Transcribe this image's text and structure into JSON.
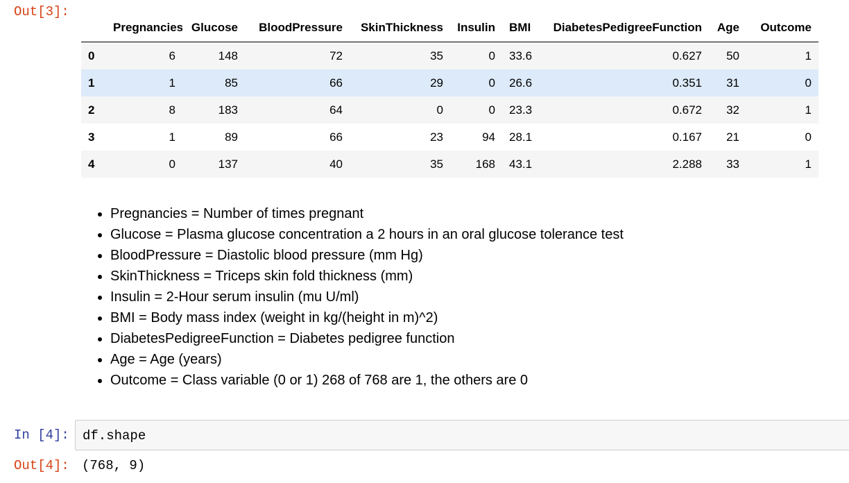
{
  "cells": [
    {
      "out_prompt": "Out[3]:",
      "dataframe": {
        "columns": [
          "Pregnancies",
          "Glucose",
          "BloodPressure",
          "SkinThickness",
          "Insulin",
          "BMI",
          "DiabetesPedigreeFunction",
          "Age",
          "Outcome"
        ],
        "rows": [
          {
            "index": "0",
            "values": [
              "6",
              "148",
              "72",
              "35",
              "0",
              "33.6",
              "0.627",
              "50",
              "1"
            ]
          },
          {
            "index": "1",
            "values": [
              "1",
              "85",
              "66",
              "29",
              "0",
              "26.6",
              "0.351",
              "31",
              "0"
            ]
          },
          {
            "index": "2",
            "values": [
              "8",
              "183",
              "64",
              "0",
              "0",
              "23.3",
              "0.672",
              "32",
              "1"
            ]
          },
          {
            "index": "3",
            "values": [
              "1",
              "89",
              "66",
              "23",
              "94",
              "28.1",
              "0.167",
              "21",
              "0"
            ]
          },
          {
            "index": "4",
            "values": [
              "0",
              "137",
              "40",
              "35",
              "168",
              "43.1",
              "2.288",
              "33",
              "1"
            ]
          }
        ],
        "hovered_row": 1
      },
      "markdown_items": [
        "Pregnancies = Number of times pregnant",
        "Glucose = Plasma glucose concentration a 2 hours in an oral glucose tolerance test",
        "BloodPressure = Diastolic blood pressure (mm Hg)",
        "SkinThickness = Triceps skin fold thickness (mm)",
        "Insulin = 2-Hour serum insulin (mu U/ml)",
        "BMI = Body mass index (weight in kg/(height in m)^2)",
        "DiabetesPedigreeFunction = Diabetes pedigree function",
        "Age = Age (years)",
        "Outcome = Class variable (0 or 1) 268 of 768 are 1, the others are 0"
      ]
    },
    {
      "in_prompt": "In [4]:",
      "code": "df.shape",
      "out_prompt": "Out[4]:",
      "output": "(768, 9)"
    }
  ],
  "colors": {
    "out_prompt": "#d84315",
    "in_prompt": "#303f9f",
    "row_hover": "#ddeaf9",
    "row_stripe": "#f5f5f5"
  }
}
